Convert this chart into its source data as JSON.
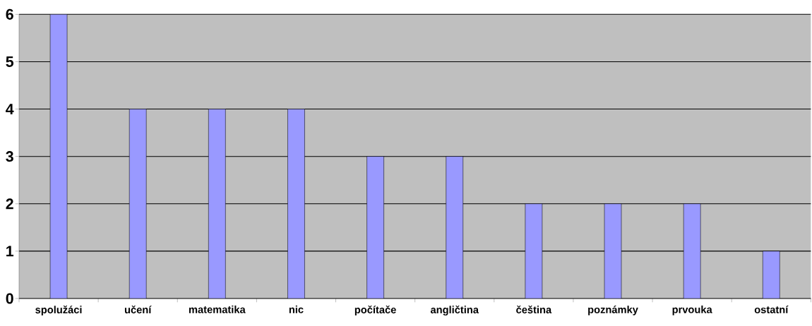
{
  "chart_data": {
    "type": "bar",
    "categories": [
      "spolužáci",
      "učení",
      "matematika",
      "nic",
      "počítače",
      "angličtina",
      "čeština",
      "poznámky",
      "prvouka",
      "ostatní"
    ],
    "values": [
      6,
      4,
      4,
      4,
      3,
      3,
      2,
      2,
      2,
      1
    ],
    "color": "#9999ff",
    "ylim": [
      0,
      6
    ],
    "yticks": [
      0,
      1,
      2,
      3,
      4,
      5,
      6
    ],
    "grid": "y"
  }
}
